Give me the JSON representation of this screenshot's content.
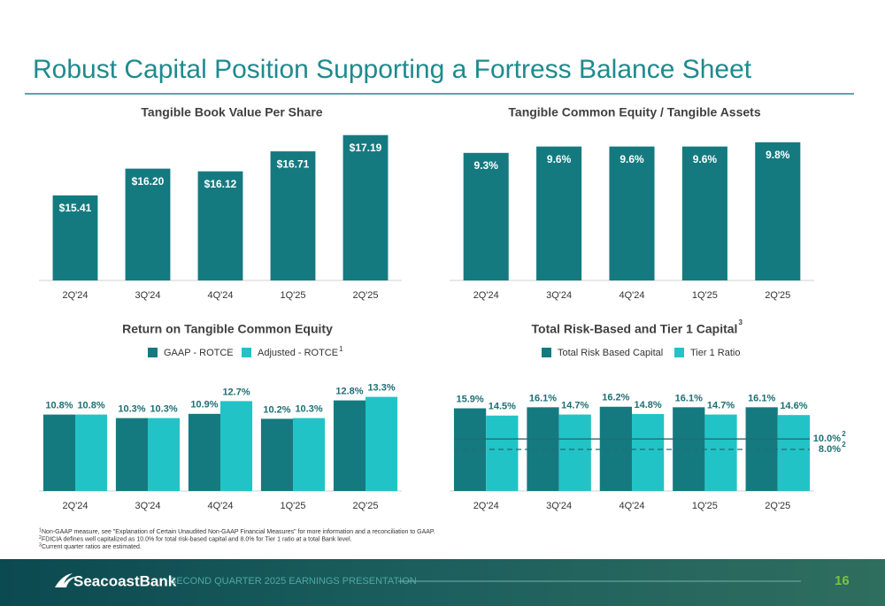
{
  "title": "Robust Capital Position Supporting a Fortress Balance Sheet",
  "chart_data": [
    {
      "type": "bar",
      "title": "Tangible Book Value Per Share",
      "categories": [
        "2Q'24",
        "3Q'24",
        "4Q'24",
        "1Q'25",
        "2Q'25"
      ],
      "values": [
        15.41,
        16.2,
        16.12,
        16.71,
        17.19
      ],
      "value_labels": [
        "$15.41",
        "$16.20",
        "$16.12",
        "$16.71",
        "$17.19"
      ],
      "color": "#157a80",
      "ylim": [
        12.9,
        17.6
      ]
    },
    {
      "type": "bar",
      "title": "Tangible Common Equity / Tangible Assets",
      "categories": [
        "2Q'24",
        "3Q'24",
        "4Q'24",
        "1Q'25",
        "2Q'25"
      ],
      "values": [
        9.3,
        9.6,
        9.6,
        9.6,
        9.8
      ],
      "value_labels": [
        "9.3%",
        "9.6%",
        "9.6%",
        "9.6%",
        "9.8%"
      ],
      "color": "#157a80",
      "ylim": [
        3.3,
        10
      ]
    },
    {
      "type": "bar",
      "title": "Return on Tangible Common Equity",
      "categories": [
        "2Q'24",
        "3Q'24",
        "4Q'24",
        "1Q'25",
        "2Q'25"
      ],
      "series": [
        {
          "name": "GAAP - ROTCE",
          "color": "#157a80",
          "values": [
            10.8,
            10.3,
            10.9,
            10.2,
            12.8
          ],
          "value_labels": [
            "10.8%",
            "10.3%",
            "10.9%",
            "10.2%",
            "12.8%"
          ]
        },
        {
          "name": "Adjusted - ROTCE",
          "note": "1",
          "color": "#22c3c6",
          "values": [
            10.8,
            10.3,
            12.7,
            10.3,
            13.3
          ],
          "value_labels": [
            "10.8%",
            "10.3%",
            "12.7%",
            "10.3%",
            "13.3%"
          ]
        }
      ],
      "ylim": [
        0,
        14
      ]
    },
    {
      "type": "bar",
      "title": "Total Risk-Based and Tier 1 Capital",
      "title_note": "3",
      "categories": [
        "2Q'24",
        "3Q'24",
        "4Q'24",
        "1Q'25",
        "2Q'25"
      ],
      "series": [
        {
          "name": "Total Risk Based Capital",
          "color": "#157a80",
          "values": [
            15.9,
            16.1,
            16.2,
            16.1,
            16.1
          ],
          "value_labels": [
            "15.9%",
            "16.1%",
            "16.2%",
            "16.1%",
            "16.1%"
          ]
        },
        {
          "name": "Tier 1 Ratio",
          "color": "#22c3c6",
          "values": [
            14.5,
            14.7,
            14.8,
            14.7,
            14.6
          ],
          "value_labels": [
            "14.5%",
            "14.7%",
            "14.8%",
            "14.7%",
            "14.6%"
          ]
        }
      ],
      "reference_lines": [
        {
          "value": 10,
          "label": "10.0%",
          "note": "2",
          "style": "solid"
        },
        {
          "value": 8,
          "label": "8.0%",
          "note": "2",
          "style": "dashed"
        }
      ],
      "ylim": [
        0,
        16.5
      ]
    }
  ],
  "footnotes": [
    {
      "marker": "1",
      "text": "Non-GAAP measure, see \"Explanation of Certain Unaudited Non-GAAP Financial Measures\" for more information and a reconciliation to GAAP."
    },
    {
      "marker": "2",
      "text": "FDICIA defines well capitalized as 10.0% for total risk-based capital and 8.0% for Tier 1 ratio at a total Bank level."
    },
    {
      "marker": "3",
      "text": "Current quarter ratios are estimated."
    }
  ],
  "footer": {
    "brand": "SeacoastBank",
    "text": "SECOND QUARTER 2025 EARNINGS PRESENTATION",
    "page": "16"
  }
}
